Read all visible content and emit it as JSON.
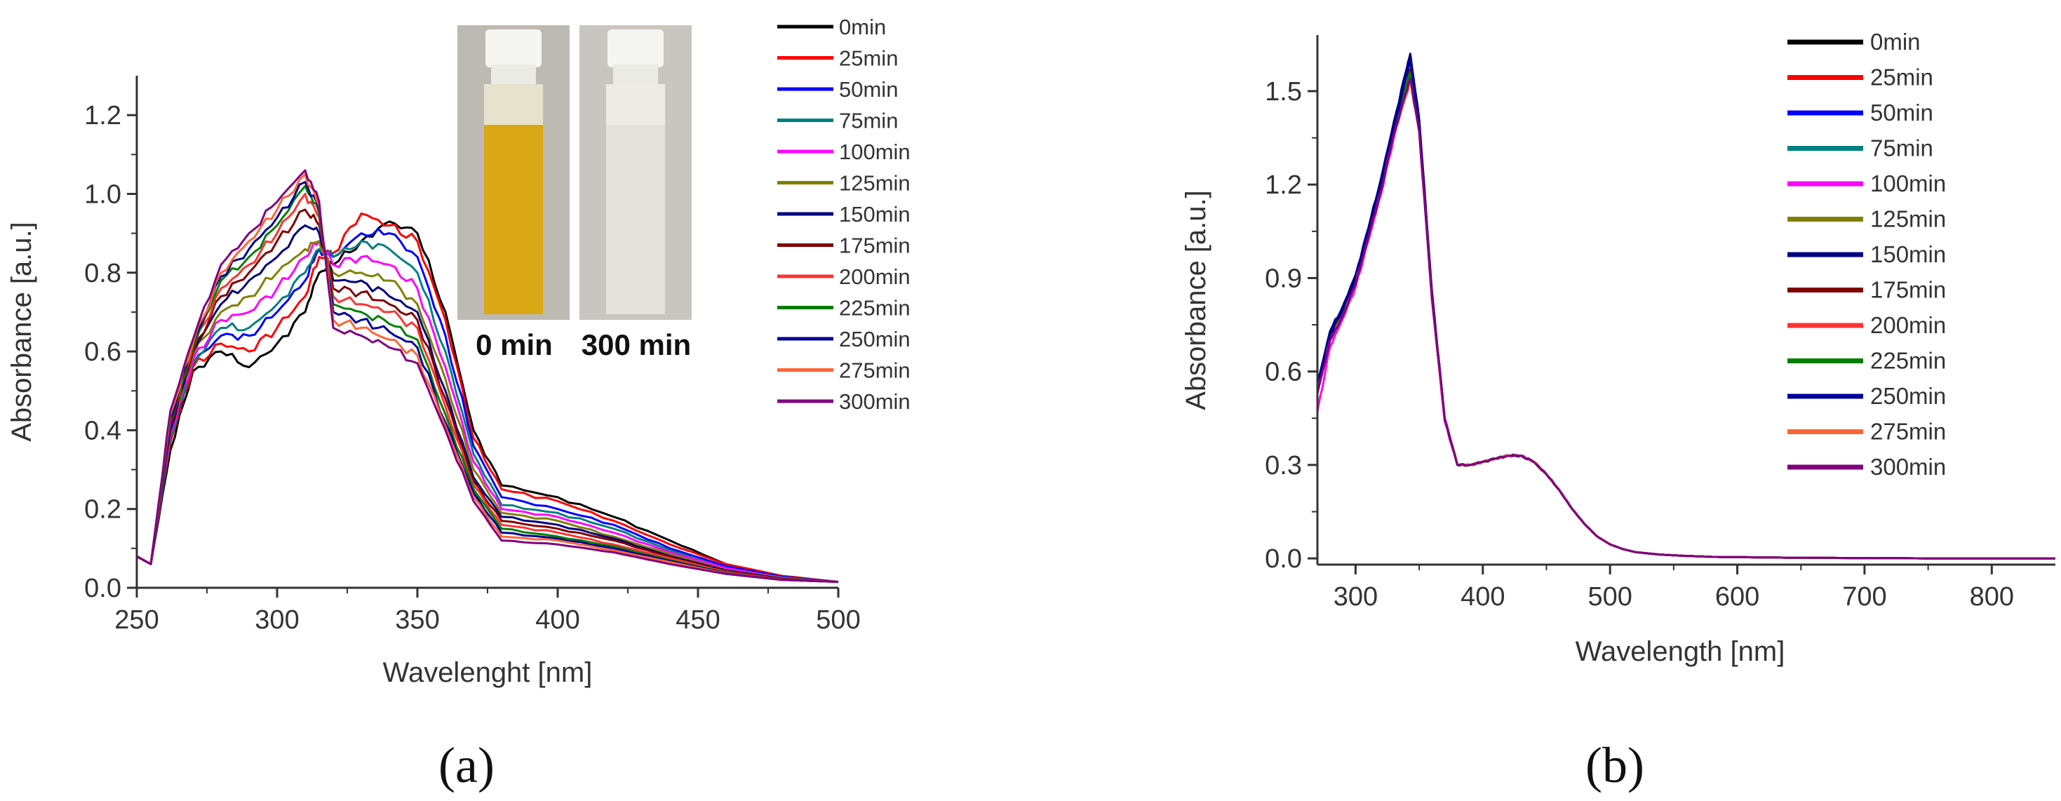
{
  "chart_data": [
    {
      "type": "line",
      "panel_label": "(a)",
      "xlabel": "Wavelenght [nm]",
      "ylabel": "Absorbance [a.u.]",
      "xlim": [
        250,
        500
      ],
      "ylim": [
        0,
        1.3
      ],
      "x_ticks": [
        "250",
        "300",
        "350",
        "400",
        "450",
        "500"
      ],
      "y_ticks": [
        "0.0",
        "0.2",
        "0.4",
        "0.6",
        "0.8",
        "1.0",
        "1.2"
      ],
      "legend_position": "top-right",
      "inset": {
        "labels": [
          "0 min",
          "300 min"
        ],
        "colors": [
          "#d9a814",
          "#e4e2da"
        ]
      },
      "x": [
        250,
        255,
        262,
        270,
        280,
        290,
        300,
        310,
        315,
        320,
        330,
        340,
        350,
        360,
        370,
        380,
        400,
        420,
        440,
        460,
        480,
        500
      ],
      "series": [
        {
          "name": "0min",
          "color": "#000000",
          "values": [
            0.08,
            0.06,
            0.35,
            0.55,
            0.6,
            0.56,
            0.62,
            0.7,
            0.8,
            0.82,
            0.88,
            0.93,
            0.9,
            0.7,
            0.4,
            0.26,
            0.23,
            0.18,
            0.12,
            0.06,
            0.03,
            0.015
          ]
        },
        {
          "name": "25min",
          "color": "#ff0000",
          "values": [
            0.08,
            0.06,
            0.37,
            0.56,
            0.62,
            0.6,
            0.66,
            0.74,
            0.84,
            0.85,
            0.95,
            0.92,
            0.88,
            0.68,
            0.38,
            0.25,
            0.22,
            0.17,
            0.11,
            0.06,
            0.03,
            0.015
          ]
        },
        {
          "name": "50min",
          "color": "#0000ff",
          "values": [
            0.08,
            0.06,
            0.38,
            0.57,
            0.64,
            0.64,
            0.7,
            0.78,
            0.86,
            0.84,
            0.9,
            0.9,
            0.84,
            0.64,
            0.36,
            0.23,
            0.2,
            0.16,
            0.1,
            0.055,
            0.028,
            0.015
          ]
        },
        {
          "name": "75min",
          "color": "#008080",
          "values": [
            0.08,
            0.06,
            0.38,
            0.57,
            0.66,
            0.66,
            0.72,
            0.8,
            0.86,
            0.84,
            0.88,
            0.86,
            0.8,
            0.6,
            0.34,
            0.21,
            0.19,
            0.15,
            0.095,
            0.05,
            0.026,
            0.015
          ]
        },
        {
          "name": "100min",
          "color": "#ff00ff",
          "values": [
            0.08,
            0.06,
            0.39,
            0.58,
            0.68,
            0.7,
            0.76,
            0.84,
            0.88,
            0.82,
            0.84,
            0.82,
            0.76,
            0.56,
            0.32,
            0.2,
            0.18,
            0.14,
            0.09,
            0.05,
            0.025,
            0.015
          ]
        },
        {
          "name": "125min",
          "color": "#808000",
          "values": [
            0.08,
            0.06,
            0.4,
            0.59,
            0.7,
            0.74,
            0.8,
            0.86,
            0.88,
            0.8,
            0.8,
            0.78,
            0.72,
            0.53,
            0.3,
            0.19,
            0.17,
            0.13,
            0.085,
            0.045,
            0.024,
            0.015
          ]
        },
        {
          "name": "150min",
          "color": "#000080",
          "values": [
            0.08,
            0.06,
            0.4,
            0.6,
            0.72,
            0.78,
            0.84,
            0.92,
            0.9,
            0.78,
            0.78,
            0.74,
            0.7,
            0.5,
            0.28,
            0.18,
            0.16,
            0.125,
            0.08,
            0.044,
            0.023,
            0.015
          ]
        },
        {
          "name": "175min",
          "color": "#800000",
          "values": [
            0.08,
            0.06,
            0.41,
            0.6,
            0.74,
            0.8,
            0.88,
            0.96,
            0.92,
            0.76,
            0.75,
            0.72,
            0.68,
            0.48,
            0.27,
            0.17,
            0.15,
            0.12,
            0.078,
            0.042,
            0.022,
            0.015
          ]
        },
        {
          "name": "200min",
          "color": "#ff3333",
          "values": [
            0.08,
            0.06,
            0.42,
            0.61,
            0.76,
            0.82,
            0.9,
            1.0,
            0.94,
            0.74,
            0.72,
            0.7,
            0.66,
            0.46,
            0.26,
            0.16,
            0.14,
            0.11,
            0.075,
            0.04,
            0.021,
            0.015
          ]
        },
        {
          "name": "225min",
          "color": "#008000",
          "values": [
            0.08,
            0.06,
            0.42,
            0.61,
            0.78,
            0.84,
            0.92,
            1.02,
            0.95,
            0.72,
            0.7,
            0.67,
            0.63,
            0.44,
            0.25,
            0.15,
            0.13,
            0.105,
            0.07,
            0.038,
            0.02,
            0.015
          ]
        },
        {
          "name": "250min",
          "color": "#000099",
          "values": [
            0.08,
            0.06,
            0.43,
            0.62,
            0.79,
            0.86,
            0.94,
            1.03,
            0.96,
            0.7,
            0.68,
            0.65,
            0.61,
            0.42,
            0.24,
            0.14,
            0.125,
            0.1,
            0.068,
            0.037,
            0.02,
            0.015
          ]
        },
        {
          "name": "275min",
          "color": "#ff6633",
          "values": [
            0.08,
            0.06,
            0.44,
            0.62,
            0.8,
            0.88,
            0.96,
            1.05,
            0.97,
            0.68,
            0.66,
            0.63,
            0.59,
            0.41,
            0.23,
            0.13,
            0.12,
            0.095,
            0.065,
            0.036,
            0.02,
            0.015
          ]
        },
        {
          "name": "300min",
          "color": "#800080",
          "values": [
            0.08,
            0.06,
            0.45,
            0.63,
            0.82,
            0.9,
            0.98,
            1.06,
            0.98,
            0.66,
            0.64,
            0.61,
            0.57,
            0.4,
            0.22,
            0.12,
            0.11,
            0.09,
            0.06,
            0.035,
            0.02,
            0.015
          ]
        }
      ]
    },
    {
      "type": "line",
      "panel_label": "(b)",
      "xlabel": "Wavelength [nm]",
      "ylabel": "Absorbance [a.u.]",
      "xlim": [
        270,
        850
      ],
      "ylim": [
        -0.02,
        1.68
      ],
      "x_ticks": [
        "300",
        "400",
        "500",
        "600",
        "700",
        "800"
      ],
      "y_ticks": [
        "0.0",
        "0.3",
        "0.6",
        "0.9",
        "1.2",
        "1.5"
      ],
      "legend_position": "top-right",
      "x": [
        270,
        280,
        290,
        300,
        310,
        320,
        330,
        340,
        343,
        350,
        360,
        370,
        380,
        390,
        400,
        410,
        420,
        430,
        440,
        450,
        460,
        470,
        480,
        490,
        500,
        510,
        520,
        540,
        560,
        580,
        600,
        650,
        700,
        750,
        800,
        850
      ],
      "series": [
        {
          "name": "0min",
          "color": "#000000",
          "values": [
            0.55,
            0.72,
            0.8,
            0.9,
            1.05,
            1.2,
            1.38,
            1.55,
            1.6,
            1.4,
            0.85,
            0.45,
            0.3,
            0.3,
            0.31,
            0.32,
            0.33,
            0.33,
            0.31,
            0.27,
            0.22,
            0.16,
            0.11,
            0.07,
            0.045,
            0.03,
            0.02,
            0.012,
            0.008,
            0.005,
            0.004,
            0.002,
            0.001,
            0.0,
            0.0,
            0.0
          ]
        },
        {
          "name": "25min",
          "color": "#ff0000",
          "values": [
            0.54,
            0.71,
            0.79,
            0.89,
            1.04,
            1.19,
            1.37,
            1.52,
            1.57,
            1.38,
            0.84,
            0.45,
            0.3,
            0.3,
            0.31,
            0.32,
            0.33,
            0.33,
            0.31,
            0.27,
            0.22,
            0.16,
            0.11,
            0.07,
            0.045,
            0.03,
            0.02,
            0.012,
            0.008,
            0.005,
            0.004,
            0.002,
            0.001,
            0.0,
            0.0,
            0.0
          ]
        },
        {
          "name": "50min",
          "color": "#0000ff",
          "values": [
            0.55,
            0.72,
            0.8,
            0.9,
            1.05,
            1.21,
            1.39,
            1.56,
            1.61,
            1.4,
            0.85,
            0.45,
            0.3,
            0.3,
            0.31,
            0.32,
            0.33,
            0.33,
            0.31,
            0.27,
            0.22,
            0.16,
            0.11,
            0.07,
            0.045,
            0.03,
            0.02,
            0.012,
            0.008,
            0.005,
            0.004,
            0.002,
            0.001,
            0.0,
            0.0,
            0.0
          ]
        },
        {
          "name": "75min",
          "color": "#008080",
          "values": [
            0.53,
            0.7,
            0.78,
            0.88,
            1.03,
            1.18,
            1.36,
            1.52,
            1.56,
            1.38,
            0.84,
            0.45,
            0.3,
            0.3,
            0.31,
            0.32,
            0.33,
            0.33,
            0.31,
            0.27,
            0.22,
            0.16,
            0.11,
            0.07,
            0.045,
            0.03,
            0.02,
            0.012,
            0.008,
            0.005,
            0.004,
            0.002,
            0.001,
            0.0,
            0.0,
            0.0
          ]
        },
        {
          "name": "100min",
          "color": "#ff00ff",
          "values": [
            0.47,
            0.68,
            0.77,
            0.87,
            1.02,
            1.17,
            1.35,
            1.5,
            1.55,
            1.37,
            0.83,
            0.44,
            0.3,
            0.3,
            0.31,
            0.32,
            0.33,
            0.33,
            0.31,
            0.27,
            0.22,
            0.16,
            0.11,
            0.07,
            0.045,
            0.03,
            0.02,
            0.012,
            0.008,
            0.005,
            0.004,
            0.002,
            0.001,
            0.0,
            0.0,
            0.0
          ]
        },
        {
          "name": "125min",
          "color": "#808000",
          "values": [
            0.53,
            0.7,
            0.78,
            0.88,
            1.03,
            1.18,
            1.36,
            1.51,
            1.56,
            1.38,
            0.84,
            0.45,
            0.3,
            0.3,
            0.31,
            0.32,
            0.33,
            0.33,
            0.31,
            0.27,
            0.22,
            0.16,
            0.11,
            0.07,
            0.045,
            0.03,
            0.02,
            0.012,
            0.008,
            0.005,
            0.004,
            0.002,
            0.001,
            0.0,
            0.0,
            0.0
          ]
        },
        {
          "name": "150min",
          "color": "#000080",
          "values": [
            0.56,
            0.73,
            0.81,
            0.91,
            1.06,
            1.22,
            1.4,
            1.57,
            1.62,
            1.41,
            0.86,
            0.45,
            0.3,
            0.3,
            0.31,
            0.32,
            0.33,
            0.33,
            0.31,
            0.27,
            0.22,
            0.16,
            0.11,
            0.07,
            0.045,
            0.03,
            0.02,
            0.012,
            0.008,
            0.005,
            0.004,
            0.002,
            0.001,
            0.0,
            0.0,
            0.0
          ]
        },
        {
          "name": "175min",
          "color": "#800000",
          "values": [
            0.54,
            0.71,
            0.79,
            0.89,
            1.04,
            1.19,
            1.37,
            1.52,
            1.57,
            1.38,
            0.84,
            0.45,
            0.3,
            0.3,
            0.31,
            0.32,
            0.33,
            0.33,
            0.31,
            0.27,
            0.22,
            0.16,
            0.11,
            0.07,
            0.045,
            0.03,
            0.02,
            0.012,
            0.008,
            0.005,
            0.004,
            0.002,
            0.001,
            0.0,
            0.0,
            0.0
          ]
        },
        {
          "name": "200min",
          "color": "#ff3333",
          "values": [
            0.53,
            0.7,
            0.78,
            0.88,
            1.03,
            1.18,
            1.36,
            1.5,
            1.54,
            1.37,
            0.84,
            0.45,
            0.3,
            0.3,
            0.31,
            0.32,
            0.33,
            0.33,
            0.31,
            0.27,
            0.22,
            0.16,
            0.11,
            0.07,
            0.045,
            0.03,
            0.02,
            0.012,
            0.008,
            0.005,
            0.004,
            0.002,
            0.001,
            0.0,
            0.0,
            0.0
          ]
        },
        {
          "name": "225min",
          "color": "#008000",
          "values": [
            0.54,
            0.71,
            0.79,
            0.89,
            1.04,
            1.19,
            1.37,
            1.52,
            1.56,
            1.38,
            0.84,
            0.45,
            0.3,
            0.3,
            0.31,
            0.32,
            0.33,
            0.33,
            0.31,
            0.27,
            0.22,
            0.16,
            0.11,
            0.07,
            0.045,
            0.03,
            0.02,
            0.012,
            0.008,
            0.005,
            0.004,
            0.002,
            0.001,
            0.0,
            0.0,
            0.0
          ]
        },
        {
          "name": "250min",
          "color": "#000099",
          "values": [
            0.55,
            0.72,
            0.8,
            0.9,
            1.05,
            1.2,
            1.38,
            1.55,
            1.6,
            1.4,
            0.85,
            0.45,
            0.3,
            0.3,
            0.31,
            0.32,
            0.33,
            0.33,
            0.31,
            0.27,
            0.22,
            0.16,
            0.11,
            0.07,
            0.045,
            0.03,
            0.02,
            0.012,
            0.008,
            0.005,
            0.004,
            0.002,
            0.001,
            0.0,
            0.0,
            0.0
          ]
        },
        {
          "name": "275min",
          "color": "#ff6633",
          "values": [
            0.53,
            0.7,
            0.78,
            0.88,
            1.03,
            1.18,
            1.36,
            1.49,
            1.53,
            1.37,
            0.84,
            0.45,
            0.3,
            0.3,
            0.31,
            0.32,
            0.33,
            0.33,
            0.31,
            0.27,
            0.22,
            0.16,
            0.11,
            0.07,
            0.045,
            0.03,
            0.02,
            0.012,
            0.008,
            0.005,
            0.004,
            0.002,
            0.001,
            0.0,
            0.0,
            0.0
          ]
        },
        {
          "name": "300min",
          "color": "#800080",
          "values": [
            0.53,
            0.7,
            0.78,
            0.88,
            1.03,
            1.18,
            1.36,
            1.5,
            1.54,
            1.37,
            0.84,
            0.45,
            0.3,
            0.3,
            0.31,
            0.32,
            0.33,
            0.33,
            0.31,
            0.27,
            0.22,
            0.16,
            0.11,
            0.07,
            0.045,
            0.03,
            0.02,
            0.012,
            0.008,
            0.005,
            0.004,
            0.002,
            0.001,
            0.0,
            0.0,
            0.0
          ]
        }
      ]
    }
  ]
}
